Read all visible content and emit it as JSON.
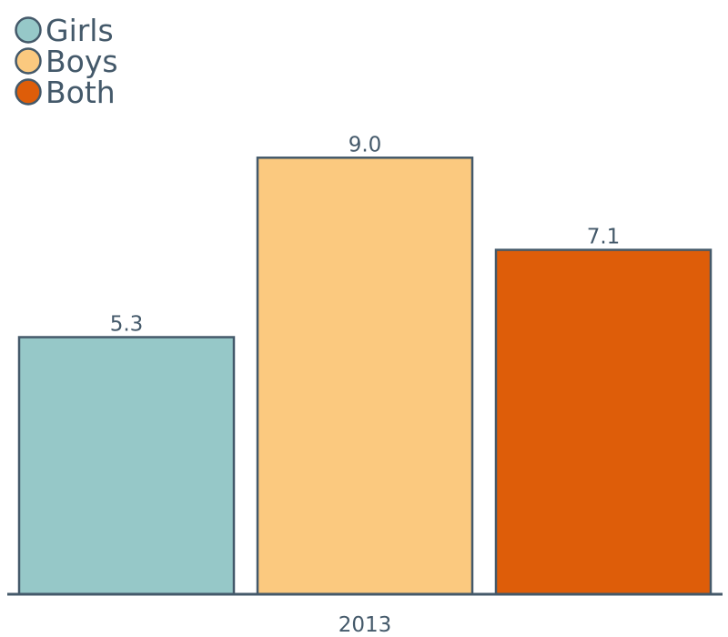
{
  "chart_data": {
    "type": "bar",
    "title": "",
    "xlabel": "",
    "ylabel": "",
    "categories": [
      "2013"
    ],
    "series": [
      {
        "name": "Girls",
        "values": [
          5.3
        ],
        "color": "#96c8c8"
      },
      {
        "name": "Boys",
        "values": [
          9.0
        ],
        "color": "#fbc97f"
      },
      {
        "name": "Both",
        "values": [
          7.1
        ],
        "color": "#de5d09"
      }
    ],
    "value_labels": [
      "5.3",
      "9.0",
      "7.1"
    ],
    "ylim": [
      0,
      10
    ],
    "grid": false,
    "legend_position": "top-left",
    "edge_color": "#44596a"
  }
}
